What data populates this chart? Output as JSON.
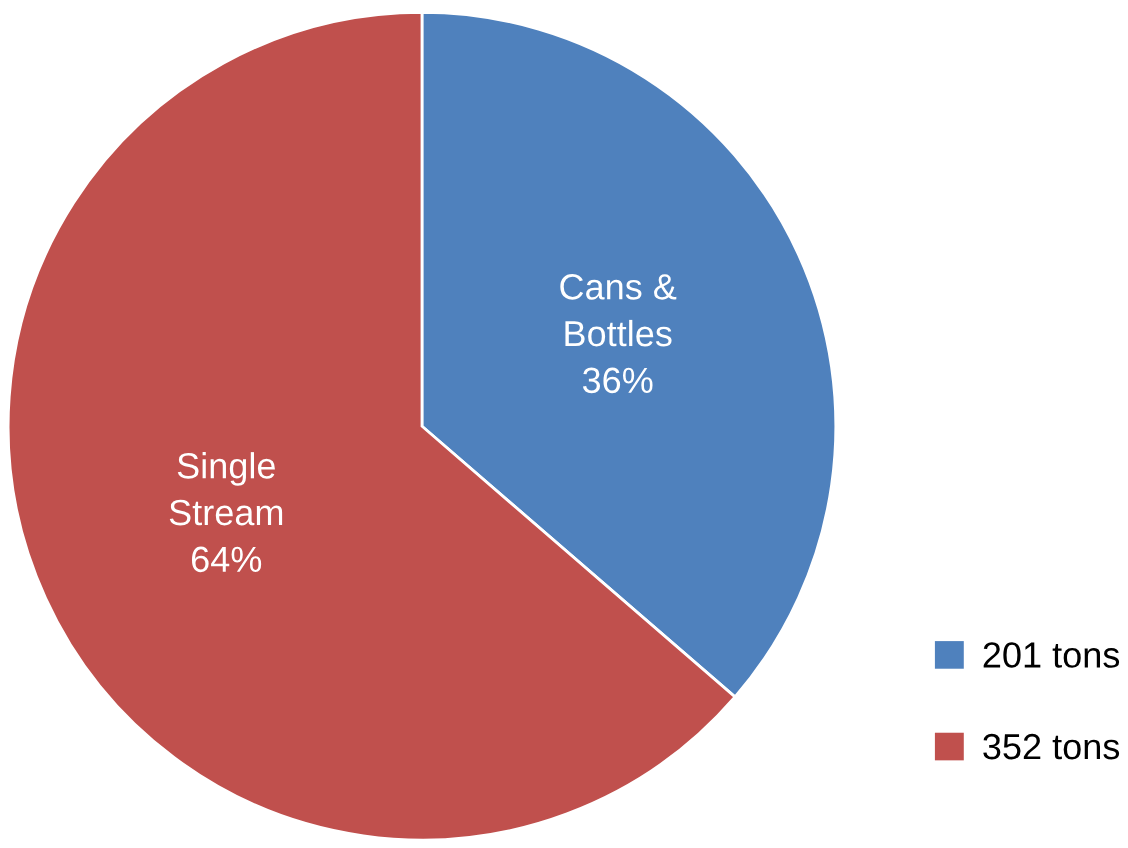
{
  "chart_data": {
    "type": "pie",
    "categories": [
      "201 tons",
      "352 tons"
    ],
    "values": [
      201,
      352
    ],
    "colors": [
      "#4f81bd",
      "#c0504d"
    ],
    "value_labels": [
      "Cans &\nBottles\n36%",
      "Single\nStream\n64%"
    ],
    "legend": "right"
  }
}
